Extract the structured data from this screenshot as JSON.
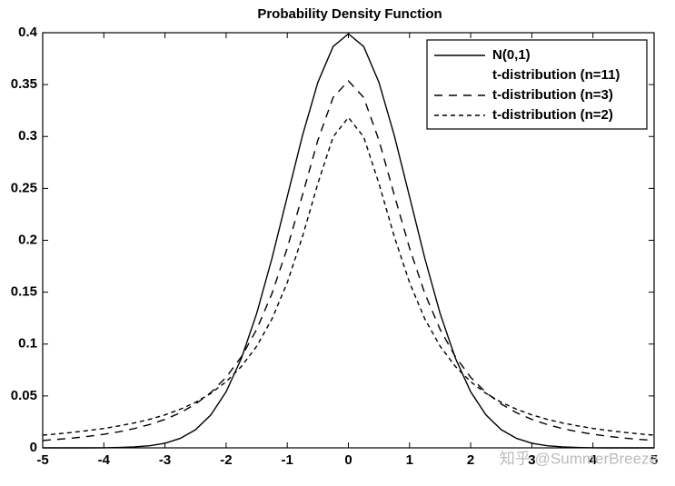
{
  "chart_data": {
    "type": "line",
    "title": "Probability Density Function",
    "x": [
      -5,
      -4.75,
      -4.5,
      -4.25,
      -4,
      -3.75,
      -3.5,
      -3.25,
      -3,
      -2.75,
      -2.5,
      -2.25,
      -2,
      -1.75,
      -1.5,
      -1.25,
      -1,
      -0.75,
      -0.5,
      -0.25,
      0,
      0.25,
      0.5,
      0.75,
      1,
      1.25,
      1.5,
      1.75,
      2,
      2.25,
      2.5,
      2.75,
      3,
      3.25,
      3.5,
      3.75,
      4,
      4.25,
      4.5,
      4.75,
      5
    ],
    "series": [
      {
        "name": "N(0,1)",
        "color": "#000000",
        "dash": "solid",
        "values": [
          0,
          0,
          0,
          0,
          0.0001,
          0.0004,
          0.0009,
          0.002,
          0.0044,
          0.0091,
          0.0175,
          0.0317,
          0.054,
          0.0863,
          0.1295,
          0.1826,
          0.242,
          0.3011,
          0.3521,
          0.3867,
          0.3989,
          0.3867,
          0.3521,
          0.3011,
          0.242,
          0.1826,
          0.1295,
          0.0863,
          0.054,
          0.0317,
          0.0175,
          0.0091,
          0.0044,
          0.002,
          0.0009,
          0.0004,
          0.0001,
          0,
          0,
          0,
          0
        ]
      },
      {
        "name": "t-distribution (n=11)",
        "color": "#000000",
        "dash": "none",
        "values": [
          null,
          null,
          null,
          null,
          null,
          null,
          null,
          null,
          null,
          null,
          null,
          null,
          null,
          null,
          null,
          null,
          null,
          null,
          null,
          null,
          null,
          null,
          null,
          null,
          null,
          null,
          null,
          null,
          null,
          null,
          null,
          null,
          null,
          null,
          null,
          null,
          null,
          null,
          null,
          null,
          null
        ]
      },
      {
        "name": "t-distribution (n=3)",
        "color": "#000000",
        "dash": "long",
        "values": [
          0.0071,
          0.0082,
          0.0095,
          0.0111,
          0.0131,
          0.0155,
          0.0186,
          0.0225,
          0.0274,
          0.0338,
          0.0422,
          0.0533,
          0.068,
          0.0878,
          0.1141,
          0.1487,
          0.1925,
          0.2438,
          0.2963,
          0.3376,
          0.3536,
          0.3376,
          0.2963,
          0.2438,
          0.1925,
          0.1487,
          0.1141,
          0.0878,
          0.068,
          0.0533,
          0.0422,
          0.0338,
          0.0274,
          0.0225,
          0.0186,
          0.0155,
          0.0131,
          0.0111,
          0.0095,
          0.0082,
          0.0071
        ]
      },
      {
        "name": "t-distribution (n=2)",
        "color": "#000000",
        "dash": "short",
        "values": [
          0.0122,
          0.0135,
          0.015,
          0.0167,
          0.0187,
          0.0212,
          0.024,
          0.0275,
          0.0318,
          0.0372,
          0.0439,
          0.0525,
          0.0637,
          0.0784,
          0.0979,
          0.1242,
          0.1592,
          0.2037,
          0.2546,
          0.2996,
          0.3183,
          0.2996,
          0.2546,
          0.2037,
          0.1592,
          0.1242,
          0.0979,
          0.0784,
          0.0637,
          0.0525,
          0.0439,
          0.0372,
          0.0318,
          0.0275,
          0.024,
          0.0212,
          0.0187,
          0.0167,
          0.015,
          0.0135,
          0.0122
        ]
      }
    ],
    "xlim": [
      -5,
      5
    ],
    "xticks": [
      -5,
      -4,
      -3,
      -2,
      -1,
      0,
      1,
      2,
      3,
      4,
      5
    ],
    "ylim": [
      0,
      0.4
    ],
    "yticks": [
      0,
      0.05,
      0.1,
      0.15,
      0.2,
      0.25,
      0.3,
      0.35,
      0.4
    ],
    "legend": "upper right",
    "grid": false,
    "watermark": "知乎 @SummerBreeze"
  }
}
